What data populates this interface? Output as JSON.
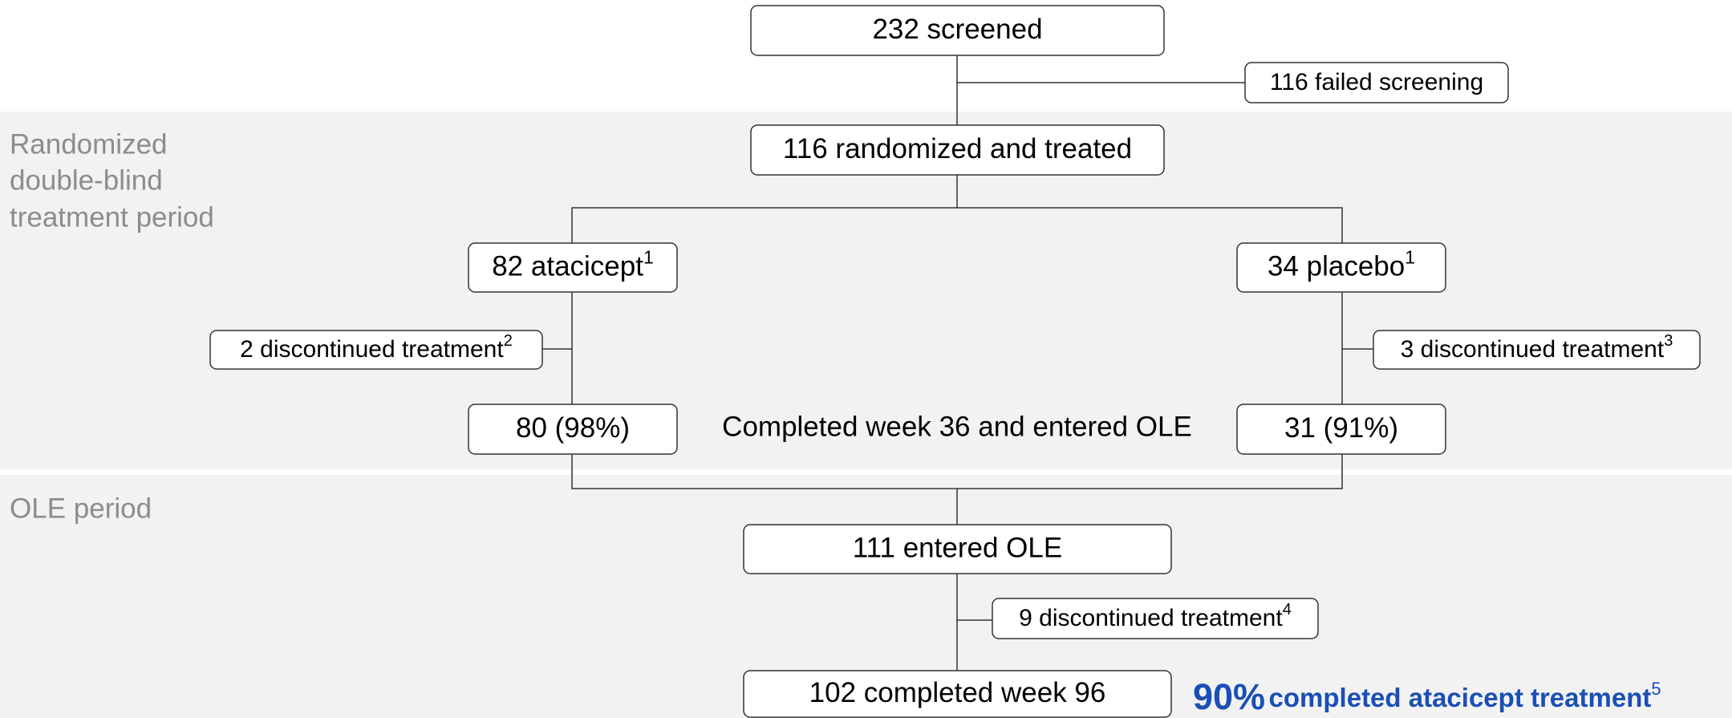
{
  "side_labels": {
    "randomized": [
      "Randomized",
      "double-blind",
      "treatment period"
    ],
    "ole": "OLE period"
  },
  "nodes": [
    {
      "text": "232 screened"
    },
    {
      "text": "116 failed screening"
    },
    {
      "text": "116 randomized and treated"
    },
    {
      "text": "82 atacicept",
      "sup": "1"
    },
    {
      "text": "34 placebo",
      "sup": "1"
    },
    {
      "text": "2 discontinued treatment",
      "sup": "2"
    },
    {
      "text": "3 discontinued treatment",
      "sup": "3"
    },
    {
      "text": "80 (98%)"
    },
    {
      "text": "31 (91%)"
    },
    {
      "text": "111 entered OLE"
    },
    {
      "text": "9 discontinued treatment",
      "sup": "4"
    },
    {
      "text": "102 completed week 96"
    }
  ],
  "center_note": "Completed week 36 and entered OLE",
  "highlight": {
    "value": "90%",
    "text": "completed atacicept treatment",
    "sup": "5"
  }
}
